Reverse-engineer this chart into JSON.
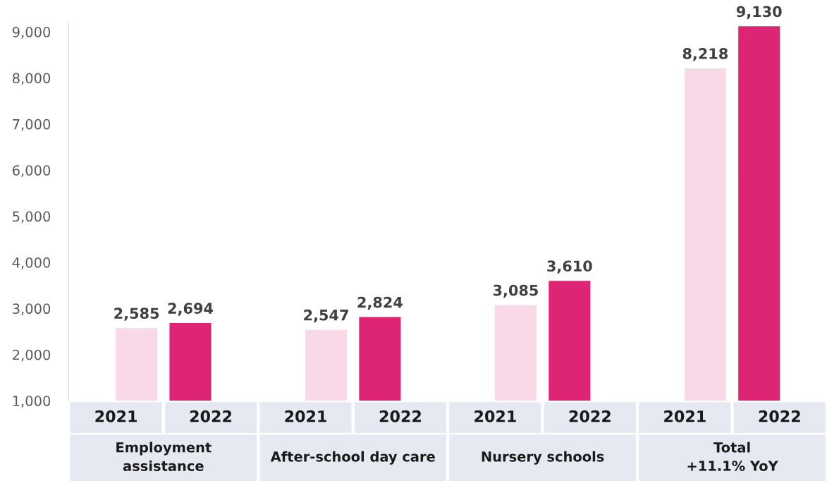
{
  "chart_data": {
    "type": "bar",
    "categories": [
      "Employment\nassistance",
      "After-school day care",
      "Nursery schools",
      "Total\n+11.1% YoY"
    ],
    "series": [
      {
        "name": "2021",
        "color": "#f9d9e8",
        "values": [
          2585,
          2547,
          3085,
          8218
        ],
        "value_labels": [
          "2,585",
          "2,547",
          "3,085",
          "8,218"
        ]
      },
      {
        "name": "2022",
        "color": "#de2474",
        "values": [
          2694,
          2824,
          3610,
          9130
        ],
        "value_labels": [
          "2,694",
          "2,824",
          "3,610",
          "9,130"
        ]
      }
    ],
    "ylim": [
      1000,
      9200
    ],
    "yticks": [
      {
        "value": 1000,
        "label": "1,000"
      },
      {
        "value": 2000,
        "label": "2,000"
      },
      {
        "value": 3000,
        "label": "3,000"
      },
      {
        "value": 4000,
        "label": "4,000"
      },
      {
        "value": 5000,
        "label": "5,000"
      },
      {
        "value": 6000,
        "label": "6,000"
      },
      {
        "value": 7000,
        "label": "7,000"
      },
      {
        "value": 8000,
        "label": "8,000"
      },
      {
        "value": 9000,
        "label": "9,000"
      }
    ],
    "grid": false
  }
}
